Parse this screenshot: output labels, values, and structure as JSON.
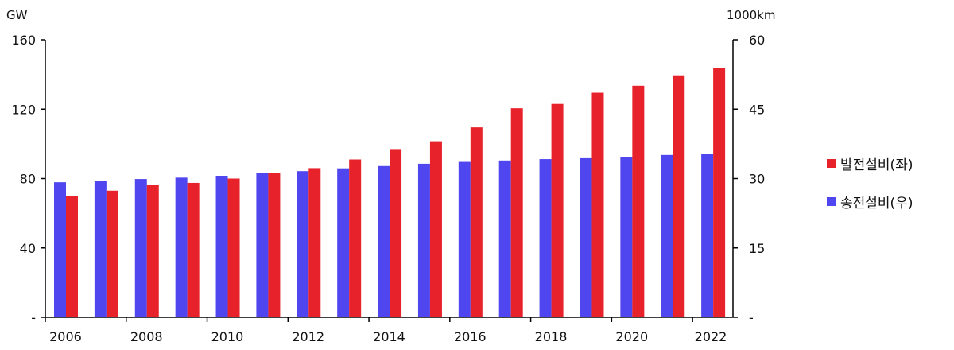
{
  "chart_data": {
    "type": "bar",
    "left_unit": "GW",
    "right_unit": "1000km",
    "left_ticks": [
      "160",
      "120",
      "80",
      "40",
      "-"
    ],
    "right_ticks": [
      "60",
      "45",
      "30",
      "15",
      "-"
    ],
    "left_ylim": [
      0,
      160
    ],
    "right_ylim": [
      0,
      60
    ],
    "x_tick_labels": [
      "2006",
      "2008",
      "2010",
      "2012",
      "2014",
      "2016",
      "2018",
      "2020",
      "2022"
    ],
    "categories": [
      "2006",
      "2007",
      "2008",
      "2009",
      "2010",
      "2011",
      "2012",
      "2013",
      "2014",
      "2015",
      "2016",
      "2017",
      "2018",
      "2019",
      "2020",
      "2021",
      "2022"
    ],
    "series": [
      {
        "name": "송전설비(우)",
        "axis": "right",
        "color": "#5046EF",
        "values": [
          29.2,
          29.5,
          29.9,
          30.2,
          30.6,
          31.2,
          31.6,
          32.2,
          32.7,
          33.2,
          33.6,
          33.9,
          34.2,
          34.4,
          34.6,
          35.1,
          35.4
        ]
      },
      {
        "name": "발전설비(좌)",
        "axis": "left",
        "color": "#E8222A",
        "values": [
          70,
          73,
          76.5,
          77.5,
          80,
          83,
          86,
          91,
          97,
          101.5,
          109.5,
          120.5,
          123,
          129.5,
          133.5,
          139.5,
          143.5
        ]
      }
    ],
    "legend": [
      {
        "label": "발전설비(좌)",
        "color": "#E8222A"
      },
      {
        "label": "송전설비(우)",
        "color": "#5046EF"
      }
    ],
    "legend_position": "right",
    "grid": false
  }
}
